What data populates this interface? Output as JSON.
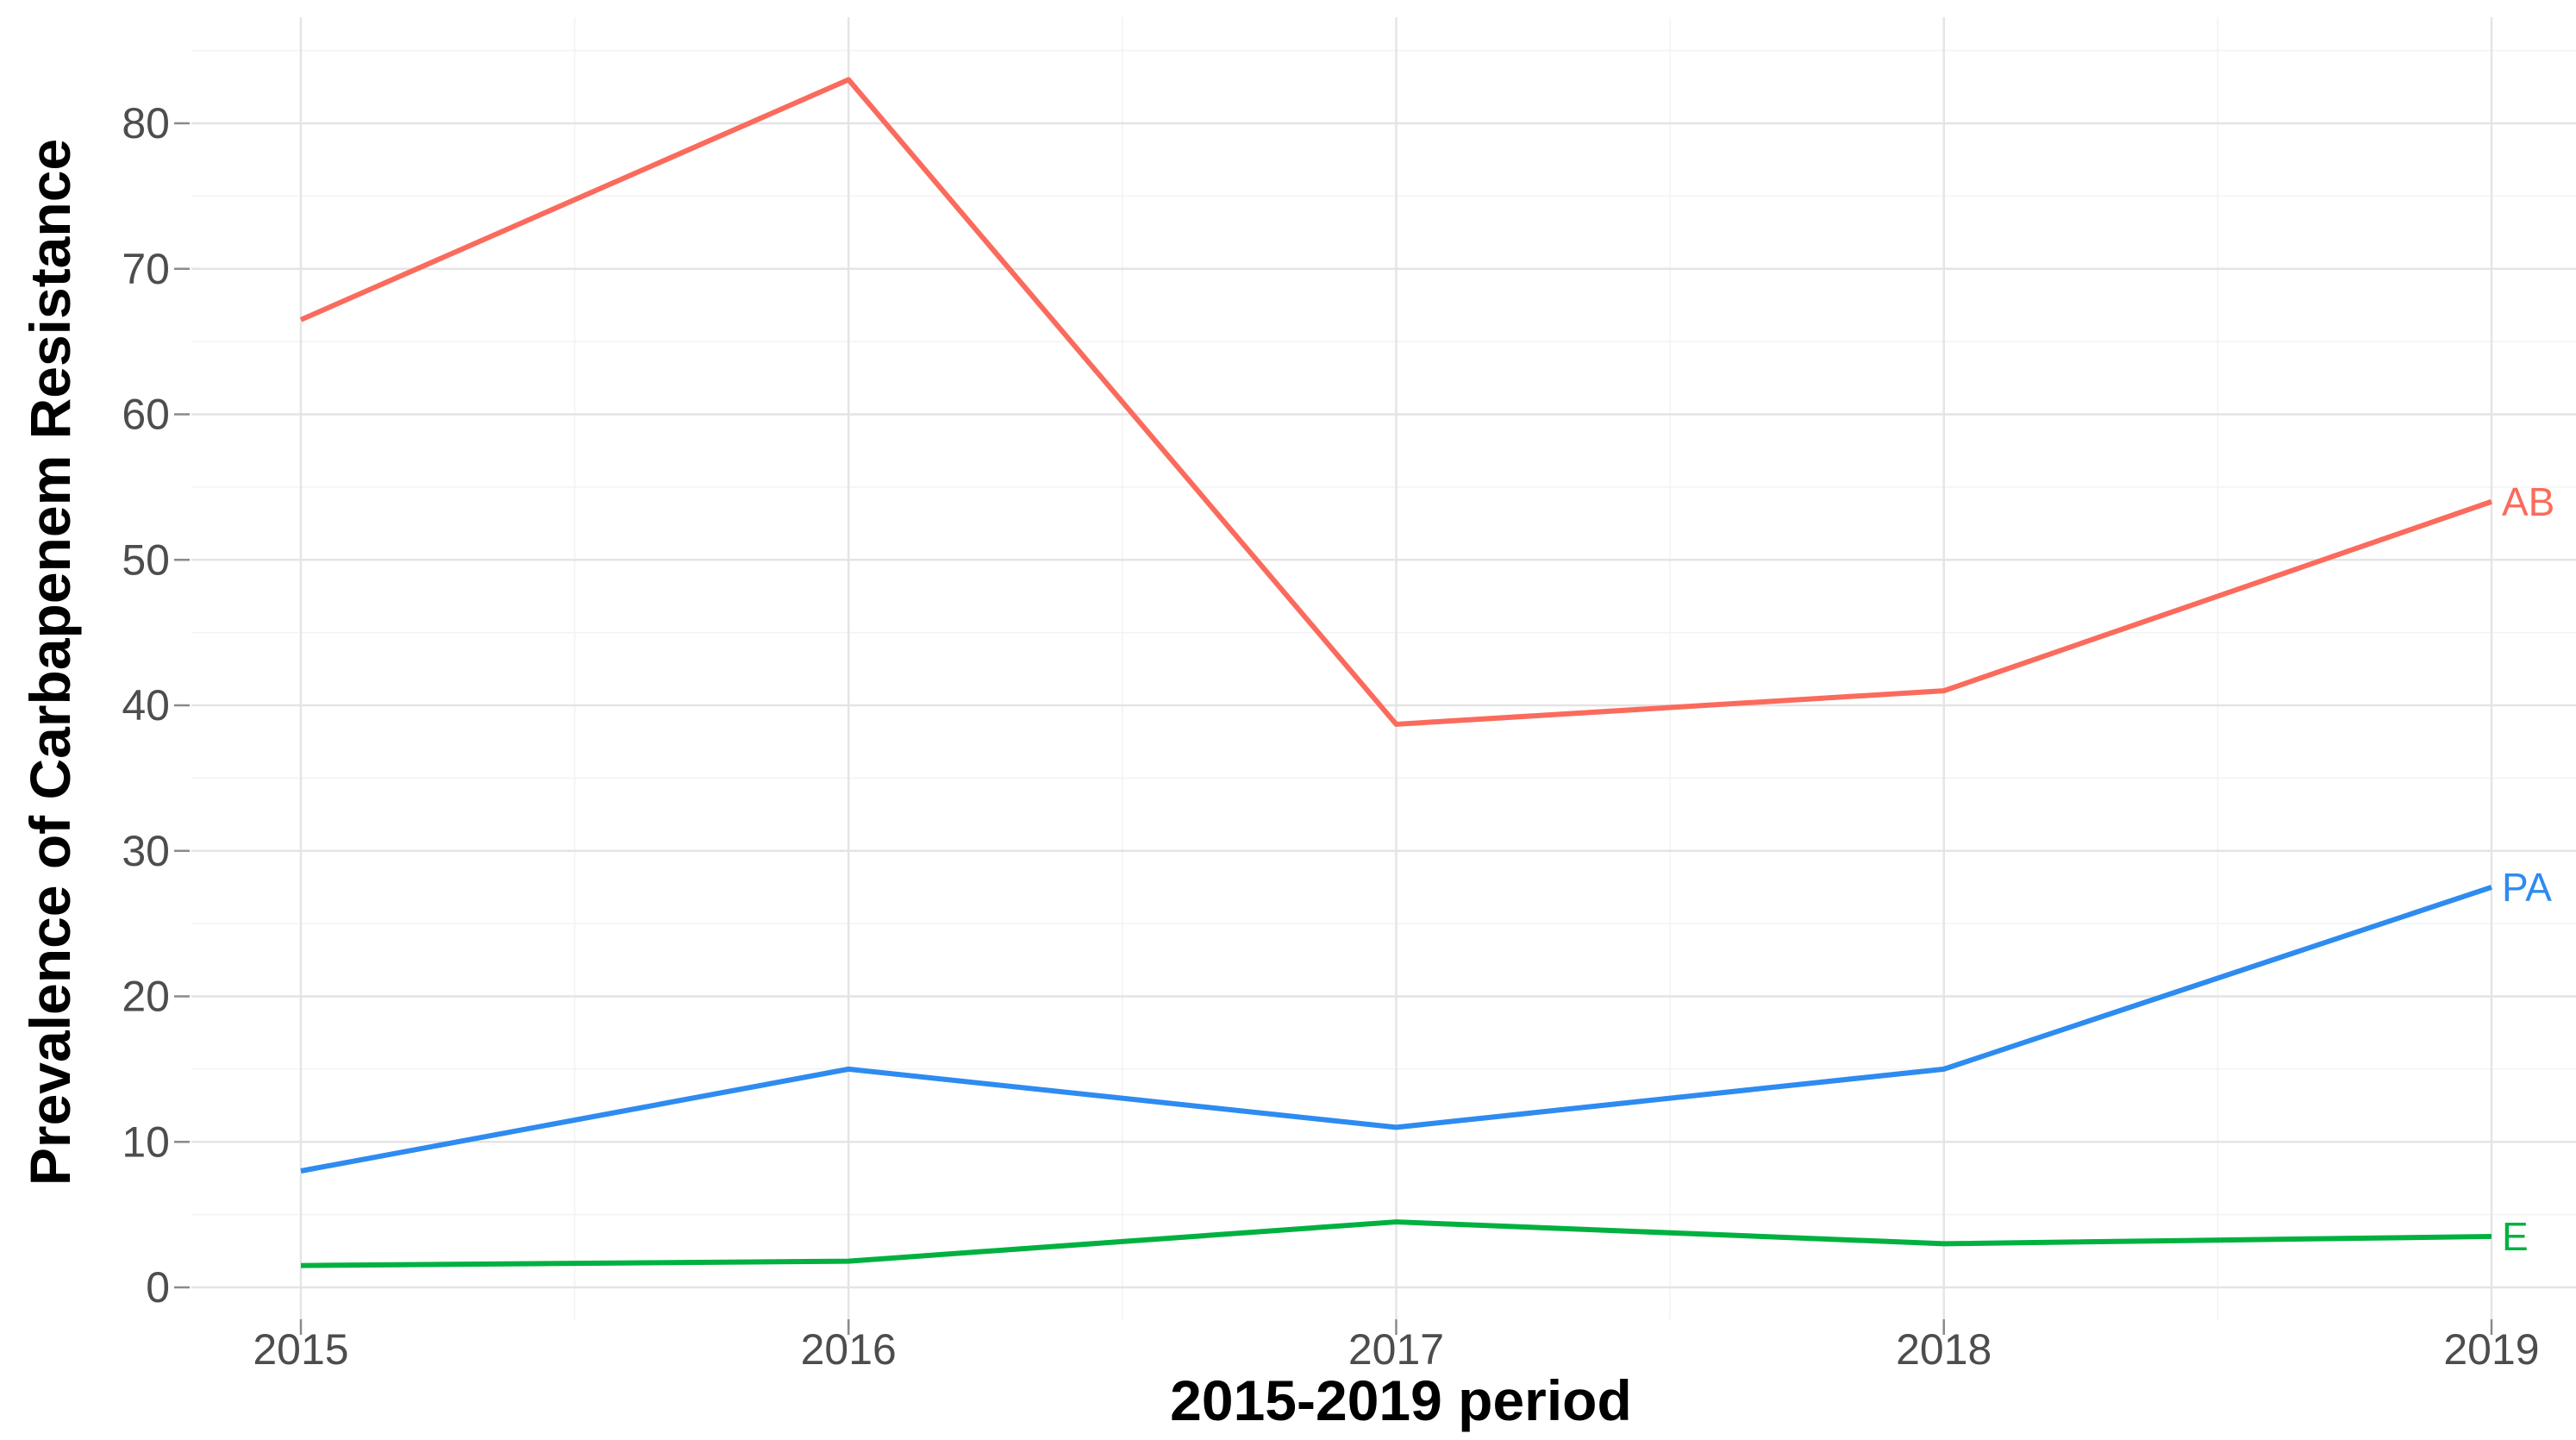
{
  "chart_data": {
    "type": "line",
    "title": "",
    "xlabel": "2015-2019 period",
    "ylabel": "Prevalence of Carbapenem Resistance",
    "x": [
      2015,
      2016,
      2017,
      2018,
      2019
    ],
    "x_tick_labels": [
      "2015",
      "2016",
      "2017",
      "2018",
      "2019"
    ],
    "yticks": [
      0,
      10,
      20,
      30,
      40,
      50,
      60,
      70,
      80
    ],
    "ylim": [
      0,
      85
    ],
    "xlim": [
      2014.8,
      2019.15
    ],
    "grid": "major gridlines every 10 with minor gridlines every 5, light gray on white; vertical majors at each year with minors at half-years",
    "legend_position": "direct labels at right end of each line",
    "series": [
      {
        "name": "AB",
        "color": "#FA6B5D",
        "values": [
          66.5,
          83,
          38.7,
          41,
          54
        ]
      },
      {
        "name": "PA",
        "color": "#2E8BF0",
        "values": [
          8,
          15,
          11,
          15,
          27.5
        ]
      },
      {
        "name": "E",
        "color": "#00B140",
        "values": [
          1.5,
          1.8,
          4.5,
          3,
          3.5
        ]
      }
    ]
  },
  "styles": {
    "background": "#FFFFFF",
    "grid_major": "#E4E4E4",
    "grid_minor": "#F3F3F3",
    "tick_text_color": "#4D4D4D",
    "axis_title_color": "#000000",
    "tick_mark_color": "#8A8A8A"
  }
}
